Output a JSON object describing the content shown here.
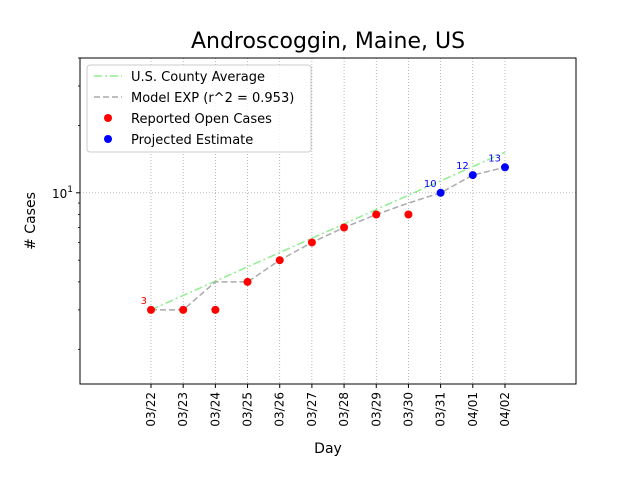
{
  "chart_data": {
    "type": "line",
    "title": "Androscoggin, Maine, US",
    "xlabel": "Day",
    "ylabel": "# Cases",
    "yscale": "log",
    "ylim": [
      1.4,
      40
    ],
    "y_tick_major": [
      {
        "value": 10,
        "base": "10",
        "exp": "1"
      }
    ],
    "grid": true,
    "legend_position": "top-left",
    "categories": [
      "03/22",
      "03/23",
      "03/24",
      "03/25",
      "03/26",
      "03/27",
      "03/28",
      "03/29",
      "03/30",
      "03/31",
      "04/01",
      "04/02"
    ],
    "series": [
      {
        "name": "U.S. County Average",
        "style": "dashdot",
        "color": "#90ee90",
        "values": [
          3,
          3.48,
          4.03,
          4.67,
          5.41,
          6.27,
          7.26,
          8.42,
          9.76,
          11.31,
          13.1,
          15.19
        ]
      },
      {
        "name": "Model EXP (r^2 = 0.953)",
        "style": "dashed",
        "color": "#aaaaaa",
        "values": [
          3,
          3,
          4,
          4,
          5,
          6,
          7,
          8,
          9,
          10,
          12,
          13
        ]
      },
      {
        "name": "Reported Open Cases",
        "style": "markers",
        "color": "#ff0000",
        "values": [
          3,
          3,
          3,
          4,
          5,
          6,
          7,
          8,
          8,
          null,
          null,
          null
        ]
      },
      {
        "name": "Projected Estimate",
        "style": "markers",
        "color": "#0000ff",
        "values": [
          null,
          null,
          null,
          null,
          null,
          null,
          null,
          null,
          null,
          10,
          12,
          13
        ]
      }
    ],
    "annotations": [
      {
        "category": "03/22",
        "value": 3,
        "text": "3",
        "color": "#ff0000"
      },
      {
        "category": "03/31",
        "value": 10,
        "text": "10",
        "color": "#0000ff"
      },
      {
        "category": "04/01",
        "value": 12,
        "text": "12",
        "color": "#0000ff"
      },
      {
        "category": "04/02",
        "value": 13,
        "text": "13",
        "color": "#0000ff"
      }
    ]
  }
}
